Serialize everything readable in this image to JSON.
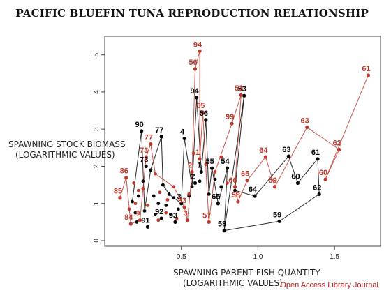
{
  "chart_data": {
    "type": "scatter",
    "title": "PACIFIC BLUEFIN TUNA REPRODUCTION RELATIONSHIP",
    "ylabel_lines": [
      "SPAWNING STOCK BIOMASS",
      "(LOGARITHMIC VALUES)"
    ],
    "xlabel_lines": [
      "SPAWNING PARENT FISH QUANTITY",
      "(LOGARITHMIC VALUES)"
    ],
    "xlim": [
      0.0,
      1.8
    ],
    "ylim": [
      -0.15,
      5.5
    ],
    "xticks": [
      0.5,
      1.0,
      1.5
    ],
    "xtick_labels": [
      "0.5",
      "1.0",
      "1.5"
    ],
    "yticks": [
      0,
      1,
      2,
      3,
      4,
      5
    ],
    "ytick_labels": [
      "0",
      "1",
      "2",
      "3",
      "4",
      "5"
    ],
    "series": [
      {
        "color": "#000000",
        "labeled_points": [
          {
            "x": 0.24,
            "y": 2.95,
            "label": "90"
          },
          {
            "x": 0.37,
            "y": 2.8,
            "label": "77"
          },
          {
            "x": 0.27,
            "y": 2.0,
            "label": "73"
          },
          {
            "x": 0.52,
            "y": 2.75,
            "label": "4"
          },
          {
            "x": 0.6,
            "y": 3.85,
            "label": "94"
          },
          {
            "x": 0.66,
            "y": 3.25,
            "label": "56"
          },
          {
            "x": 0.63,
            "y": 1.85,
            "label": "1"
          },
          {
            "x": 0.7,
            "y": 1.95,
            "label": "55"
          },
          {
            "x": 0.8,
            "y": 1.95,
            "label": "54"
          },
          {
            "x": 0.91,
            "y": 3.9,
            "label": "53"
          },
          {
            "x": 0.59,
            "y": 1.55,
            "label": "2"
          },
          {
            "x": 0.5,
            "y": 1.0,
            "label": "3"
          },
          {
            "x": 0.28,
            "y": 0.37,
            "label": "91"
          },
          {
            "x": 0.37,
            "y": 0.6,
            "label": "92"
          },
          {
            "x": 0.46,
            "y": 0.5,
            "label": "93"
          },
          {
            "x": 0.74,
            "y": 1.0,
            "label": "65"
          },
          {
            "x": 0.78,
            "y": 0.27,
            "label": "58"
          },
          {
            "x": 0.98,
            "y": 1.2,
            "label": "64"
          },
          {
            "x": 1.2,
            "y": 2.27,
            "label": "63"
          },
          {
            "x": 1.39,
            "y": 2.2,
            "label": "61"
          },
          {
            "x": 1.26,
            "y": 1.55,
            "label": "60"
          },
          {
            "x": 1.4,
            "y": 1.25,
            "label": "62"
          },
          {
            "x": 1.14,
            "y": 0.52,
            "label": "59"
          }
        ],
        "points": [
          [
            0.18,
            1.05
          ],
          [
            0.2,
            0.75
          ],
          [
            0.22,
            1.2
          ],
          [
            0.25,
            1.6
          ],
          [
            0.3,
            1.9
          ],
          [
            0.32,
            1.2
          ],
          [
            0.35,
            1.0
          ],
          [
            0.38,
            1.5
          ],
          [
            0.4,
            0.95
          ],
          [
            0.42,
            1.25
          ],
          [
            0.45,
            1.15
          ],
          [
            0.48,
            0.85
          ],
          [
            0.55,
            1.2
          ],
          [
            0.57,
            1.45
          ],
          [
            0.62,
            1.6
          ],
          [
            0.68,
            1.25
          ],
          [
            0.72,
            1.65
          ],
          [
            0.76,
            1.45
          ],
          [
            0.85,
            1.35
          ],
          [
            0.21,
            0.5
          ],
          [
            0.26,
            0.8
          ],
          [
            0.33,
            0.7
          ],
          [
            0.43,
            0.7
          ]
        ],
        "path": [
          [
            0.18,
            1.05
          ],
          [
            0.24,
            2.95
          ],
          [
            0.26,
            0.8
          ],
          [
            0.3,
            1.9
          ],
          [
            0.37,
            2.8
          ],
          [
            0.38,
            1.5
          ],
          [
            0.42,
            1.25
          ],
          [
            0.5,
            1.0
          ],
          [
            0.52,
            2.75
          ],
          [
            0.57,
            1.45
          ],
          [
            0.6,
            3.85
          ],
          [
            0.63,
            1.85
          ],
          [
            0.66,
            3.25
          ],
          [
            0.68,
            1.25
          ],
          [
            0.7,
            1.95
          ],
          [
            0.74,
            1.0
          ],
          [
            0.8,
            1.95
          ],
          [
            0.78,
            0.27
          ],
          [
            0.91,
            3.9
          ],
          [
            0.85,
            1.35
          ],
          [
            0.98,
            1.2
          ],
          [
            1.2,
            2.27
          ],
          [
            1.26,
            1.55
          ],
          [
            1.39,
            2.2
          ],
          [
            1.4,
            1.25
          ],
          [
            1.14,
            0.52
          ],
          [
            0.78,
            0.27
          ]
        ]
      },
      {
        "color": "#c0392b",
        "labeled_points": [
          {
            "x": 0.62,
            "y": 5.1,
            "label": "94"
          },
          {
            "x": 0.59,
            "y": 4.62,
            "label": "56"
          },
          {
            "x": 0.89,
            "y": 3.92,
            "label": "53"
          },
          {
            "x": 0.64,
            "y": 3.45,
            "label": "55"
          },
          {
            "x": 0.83,
            "y": 3.15,
            "label": "99"
          },
          {
            "x": 0.3,
            "y": 2.6,
            "label": "77"
          },
          {
            "x": 0.27,
            "y": 2.25,
            "label": "73"
          },
          {
            "x": 0.14,
            "y": 1.7,
            "label": "86"
          },
          {
            "x": 0.1,
            "y": 1.15,
            "label": "85"
          },
          {
            "x": 0.17,
            "y": 0.45,
            "label": "84"
          },
          {
            "x": 0.23,
            "y": 0.55,
            "label": "9"
          },
          {
            "x": 0.62,
            "y": 2.2,
            "label": "1"
          },
          {
            "x": 0.57,
            "y": 1.85,
            "label": "2"
          },
          {
            "x": 0.52,
            "y": 0.9,
            "label": "93"
          },
          {
            "x": 0.54,
            "y": 0.55,
            "label": "3"
          },
          {
            "x": 0.68,
            "y": 0.5,
            "label": "57"
          },
          {
            "x": 0.85,
            "y": 1.45,
            "label": "66"
          },
          {
            "x": 0.87,
            "y": 1.05,
            "label": "58"
          },
          {
            "x": 0.93,
            "y": 1.62,
            "label": "65"
          },
          {
            "x": 1.05,
            "y": 2.25,
            "label": "64"
          },
          {
            "x": 1.11,
            "y": 1.45,
            "label": "59"
          },
          {
            "x": 1.32,
            "y": 3.05,
            "label": "63"
          },
          {
            "x": 1.44,
            "y": 1.65,
            "label": "60"
          },
          {
            "x": 1.53,
            "y": 2.45,
            "label": "62"
          },
          {
            "x": 1.72,
            "y": 4.45,
            "label": "61"
          }
        ],
        "points": [
          [
            0.2,
            1.0
          ],
          [
            0.25,
            1.4
          ],
          [
            0.33,
            1.8
          ],
          [
            0.36,
            1.3
          ],
          [
            0.41,
            1.1
          ],
          [
            0.45,
            1.45
          ],
          [
            0.55,
            1.25
          ],
          [
            0.58,
            2.35
          ],
          [
            0.66,
            2.05
          ],
          [
            0.72,
            1.85
          ],
          [
            0.76,
            2.25
          ],
          [
            0.8,
            1.55
          ],
          [
            0.22,
            1.35
          ],
          [
            0.28,
            0.95
          ],
          [
            0.4,
            0.75
          ],
          [
            0.47,
            0.6
          ],
          [
            0.35,
            0.55
          ],
          [
            0.16,
            0.85
          ],
          [
            0.19,
            1.55
          ]
        ],
        "path": [
          [
            0.1,
            1.15
          ],
          [
            0.14,
            1.7
          ],
          [
            0.17,
            0.45
          ],
          [
            0.23,
            0.55
          ],
          [
            0.27,
            2.25
          ],
          [
            0.3,
            2.6
          ],
          [
            0.33,
            1.8
          ],
          [
            0.45,
            1.45
          ],
          [
            0.52,
            0.9
          ],
          [
            0.54,
            0.55
          ],
          [
            0.57,
            1.85
          ],
          [
            0.59,
            4.62
          ],
          [
            0.62,
            5.1
          ],
          [
            0.62,
            2.2
          ],
          [
            0.64,
            3.45
          ],
          [
            0.68,
            0.5
          ],
          [
            0.72,
            1.85
          ],
          [
            0.83,
            3.15
          ],
          [
            0.89,
            3.92
          ],
          [
            0.85,
            1.45
          ],
          [
            0.87,
            1.05
          ],
          [
            0.93,
            1.62
          ],
          [
            1.05,
            2.25
          ],
          [
            1.11,
            1.45
          ],
          [
            1.32,
            3.05
          ],
          [
            1.53,
            2.45
          ],
          [
            1.44,
            1.65
          ],
          [
            1.72,
            4.45
          ]
        ]
      }
    ]
  },
  "source": "Open Access Library Journal"
}
